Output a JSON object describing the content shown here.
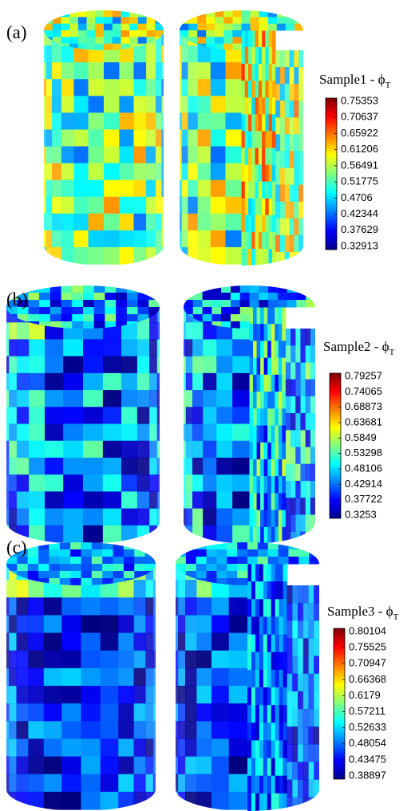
{
  "panels": [
    {
      "label": "(a)",
      "colorbar": {
        "title": "Sample1 - ϕ",
        "title_subscript": "T",
        "ticks": [
          0.75353,
          0.70637,
          0.65922,
          0.61206,
          0.56491,
          0.51775,
          0.4706,
          0.42344,
          0.37629,
          0.32913
        ]
      }
    },
    {
      "label": "(b)",
      "colorbar": {
        "title": "Sample2 - ϕ",
        "title_subscript": "T",
        "ticks": [
          0.79257,
          0.74065,
          0.68873,
          0.63681,
          0.5849,
          0.53298,
          0.48106,
          0.42914,
          0.37722,
          0.3253
        ]
      }
    },
    {
      "label": "(c)",
      "colorbar": {
        "title": "Sample3 - ϕ",
        "title_subscript": "T",
        "ticks": [
          0.80104,
          0.75525,
          0.70947,
          0.66368,
          0.6179,
          0.57211,
          0.52633,
          0.48054,
          0.43475,
          0.38897
        ]
      }
    }
  ]
}
